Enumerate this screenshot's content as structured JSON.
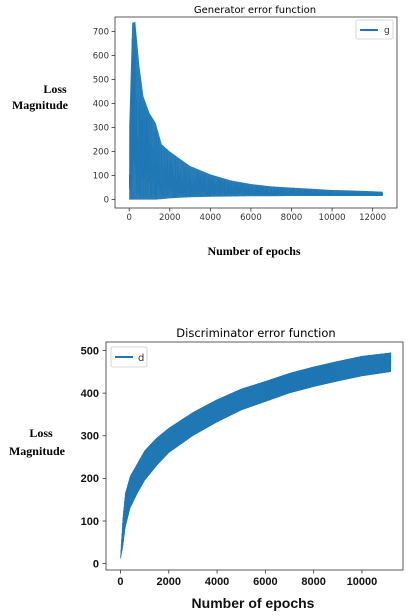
{
  "chart_data": [
    {
      "type": "line",
      "title": "Generator error function",
      "xlabel": "Number of epochs",
      "ylabel": "Loss Magnitude",
      "xlim": [
        -700,
        13200
      ],
      "ylim": [
        -35,
        760
      ],
      "x_ticks": [
        0,
        2000,
        4000,
        6000,
        8000,
        10000,
        12000
      ],
      "y_ticks": [
        0,
        100,
        200,
        300,
        400,
        500,
        600,
        700
      ],
      "grid": false,
      "legend_position": "top-right",
      "color": "#1f77b4",
      "series": [
        {
          "name": "g",
          "x": [
            0,
            150,
            300,
            500,
            700,
            1000,
            1300,
            1600,
            2000,
            2500,
            3000,
            4000,
            5000,
            6000,
            7000,
            8000,
            9000,
            10000,
            11000,
            12000,
            12500
          ],
          "upper": [
            300,
            735,
            740,
            560,
            430,
            360,
            320,
            230,
            200,
            170,
            140,
            105,
            80,
            65,
            55,
            50,
            45,
            40,
            38,
            35,
            33
          ],
          "lower": [
            0,
            0,
            0,
            0,
            0,
            0,
            0,
            2,
            5,
            8,
            10,
            12,
            13,
            14,
            14,
            15,
            15,
            15,
            15,
            15,
            15
          ]
        }
      ]
    },
    {
      "type": "line",
      "title": "Discriminator error function",
      "xlabel": "Number of epochs",
      "ylabel": "Loss Magnitude",
      "xlim": [
        -600,
        11700
      ],
      "ylim": [
        -15,
        520
      ],
      "x_ticks": [
        0,
        2000,
        4000,
        6000,
        8000,
        10000
      ],
      "y_ticks": [
        0,
        100,
        200,
        300,
        400,
        500
      ],
      "grid": false,
      "legend_position": "top-left",
      "color": "#1f77b4",
      "series": [
        {
          "name": "d",
          "x": [
            0,
            100,
            200,
            400,
            700,
            1000,
            1500,
            2000,
            3000,
            4000,
            5000,
            6000,
            7000,
            8000,
            9000,
            10000,
            11200
          ],
          "upper": [
            20,
            110,
            165,
            205,
            235,
            265,
            295,
            318,
            355,
            385,
            410,
            428,
            447,
            462,
            475,
            487,
            495
          ],
          "lower": [
            10,
            40,
            85,
            130,
            165,
            195,
            230,
            260,
            300,
            332,
            360,
            380,
            400,
            415,
            428,
            440,
            450
          ]
        }
      ]
    }
  ]
}
